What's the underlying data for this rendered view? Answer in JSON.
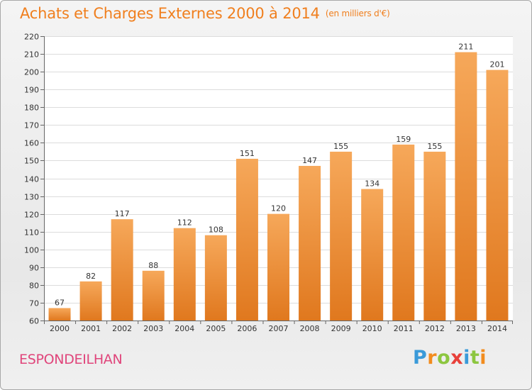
{
  "header": {
    "title": "Achats et Charges Externes 2000 à 2014",
    "unit": "(en milliers d'€)"
  },
  "footer": {
    "commune": "ESPONDEILHAN",
    "brand_letters": [
      "P",
      "r",
      "o",
      "x",
      "i",
      "t",
      "i"
    ],
    "brand_colors": [
      "#3a9ad9",
      "#f28c1e",
      "#8cc63f",
      "#e8403a",
      "#3a9ad9",
      "#8cc63f",
      "#f28c1e"
    ]
  },
  "colors": {
    "title": "#f07f1e",
    "commune": "#e0457b",
    "bar_top": "#f6a85a",
    "bar_bottom": "#e0781e"
  },
  "chart_data": {
    "type": "bar",
    "title": "Achats et Charges Externes 2000 à 2014",
    "subtitle": "(en milliers d'€)",
    "categories": [
      "2000",
      "2001",
      "2002",
      "2003",
      "2004",
      "2005",
      "2006",
      "2007",
      "2008",
      "2009",
      "2010",
      "2011",
      "2012",
      "2013",
      "2014"
    ],
    "values": [
      67,
      82,
      117,
      88,
      112,
      108,
      151,
      120,
      147,
      155,
      134,
      159,
      155,
      211,
      201
    ],
    "ylim": [
      60,
      220
    ],
    "yticks": [
      60,
      70,
      80,
      90,
      100,
      110,
      120,
      130,
      140,
      150,
      160,
      170,
      180,
      190,
      200,
      210,
      220
    ],
    "grid": true,
    "data_labels": true
  }
}
